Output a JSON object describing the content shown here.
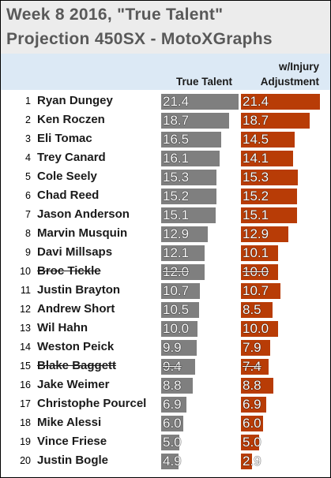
{
  "title_line1": "Week 8 2016, \"True Talent\"",
  "title_line2": "Projection 450SX - MotoXGraphs",
  "colors": {
    "title_bg": "#ececec",
    "title_text": "#595959",
    "header_bg": "#dce9f5",
    "true_talent_bar": "#7f7f7f",
    "injury_bar": "#b83c06",
    "value_text": "#ffffff"
  },
  "chart_data": {
    "type": "bar",
    "orientation": "horizontal",
    "columns": [
      {
        "name": "True Talent"
      },
      {
        "name": "w/Injury Adjustment"
      }
    ],
    "header": {
      "true_talent": "True Talent",
      "injury_line1": "w/Injury",
      "injury_line2": "Adjustment"
    },
    "value_max": 21.4,
    "rows": [
      {
        "rank": "1",
        "rider": "Ryan Dungey",
        "true_talent": 21.4,
        "injury_adjusted": 21.4,
        "struck_out": false
      },
      {
        "rank": "2",
        "rider": "Ken Roczen",
        "true_talent": 18.7,
        "injury_adjusted": 18.7,
        "struck_out": false
      },
      {
        "rank": "3",
        "rider": "Eli Tomac",
        "true_talent": 16.5,
        "injury_adjusted": 14.5,
        "struck_out": false
      },
      {
        "rank": "4",
        "rider": "Trey Canard",
        "true_talent": 16.1,
        "injury_adjusted": 14.1,
        "struck_out": false
      },
      {
        "rank": "5",
        "rider": "Cole Seely",
        "true_talent": 15.3,
        "injury_adjusted": 15.3,
        "struck_out": false
      },
      {
        "rank": "6",
        "rider": "Chad Reed",
        "true_talent": 15.2,
        "injury_adjusted": 15.2,
        "struck_out": false
      },
      {
        "rank": "7",
        "rider": "Jason Anderson",
        "true_talent": 15.1,
        "injury_adjusted": 15.1,
        "struck_out": false
      },
      {
        "rank": "8",
        "rider": "Marvin Musquin",
        "true_talent": 12.9,
        "injury_adjusted": 12.9,
        "struck_out": false
      },
      {
        "rank": "9",
        "rider": "Davi Millsaps",
        "true_talent": 12.1,
        "injury_adjusted": 10.1,
        "struck_out": false
      },
      {
        "rank": "10",
        "rider": "Broc Tickle",
        "true_talent": 12.0,
        "injury_adjusted": 10.0,
        "struck_out": true
      },
      {
        "rank": "11",
        "rider": "Justin Brayton",
        "true_talent": 10.7,
        "injury_adjusted": 10.7,
        "struck_out": false
      },
      {
        "rank": "12",
        "rider": "Andrew Short",
        "true_talent": 10.5,
        "injury_adjusted": 8.5,
        "struck_out": false
      },
      {
        "rank": "13",
        "rider": "Wil Hahn",
        "true_talent": 10.0,
        "injury_adjusted": 10.0,
        "struck_out": false
      },
      {
        "rank": "14",
        "rider": "Weston Peick",
        "true_talent": 9.9,
        "injury_adjusted": 7.9,
        "struck_out": false
      },
      {
        "rank": "15",
        "rider": "Blake Baggett",
        "true_talent": 9.4,
        "injury_adjusted": 7.4,
        "struck_out": true
      },
      {
        "rank": "16",
        "rider": "Jake Weimer",
        "true_talent": 8.8,
        "injury_adjusted": 8.8,
        "struck_out": false
      },
      {
        "rank": "17",
        "rider": "Christophe Pourcel",
        "true_talent": 6.9,
        "injury_adjusted": 6.9,
        "struck_out": false
      },
      {
        "rank": "18",
        "rider": "Mike Alessi",
        "true_talent": 6.0,
        "injury_adjusted": 6.0,
        "struck_out": false
      },
      {
        "rank": "19",
        "rider": "Vince Friese",
        "true_talent": 5.0,
        "injury_adjusted": 5.0,
        "struck_out": false
      },
      {
        "rank": "20",
        "rider": "Justin Bogle",
        "true_talent": 4.9,
        "injury_adjusted": 2.9,
        "struck_out": false
      }
    ]
  }
}
